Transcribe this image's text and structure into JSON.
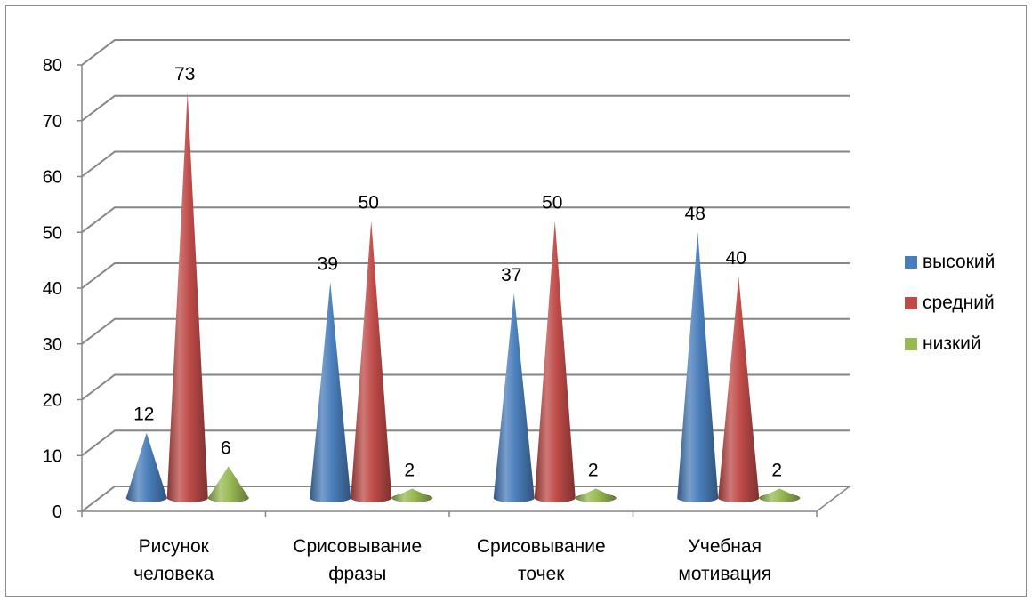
{
  "chart_data": {
    "type": "bar",
    "bar_shape": "cone-3d",
    "categories": [
      [
        "Рисунок",
        "человека"
      ],
      [
        "Срисовывание",
        "фразы"
      ],
      [
        "Срисовывание",
        "точек"
      ],
      [
        "Учебная",
        "мотивация"
      ]
    ],
    "series": [
      {
        "name": "высокий",
        "values": [
          12,
          39,
          37,
          48
        ],
        "color": "#4a7ebb"
      },
      {
        "name": "средний",
        "values": [
          73,
          50,
          50,
          40
        ],
        "color": "#be4b48"
      },
      {
        "name": "низкий",
        "values": [
          6,
          2,
          2,
          2
        ],
        "color": "#98b954"
      }
    ],
    "ylim": [
      0,
      80
    ],
    "yticks": [
      "0",
      "10",
      "20",
      "30",
      "40",
      "50",
      "60",
      "70",
      "80"
    ],
    "grid": true,
    "legend": "right",
    "data_labels": true
  }
}
